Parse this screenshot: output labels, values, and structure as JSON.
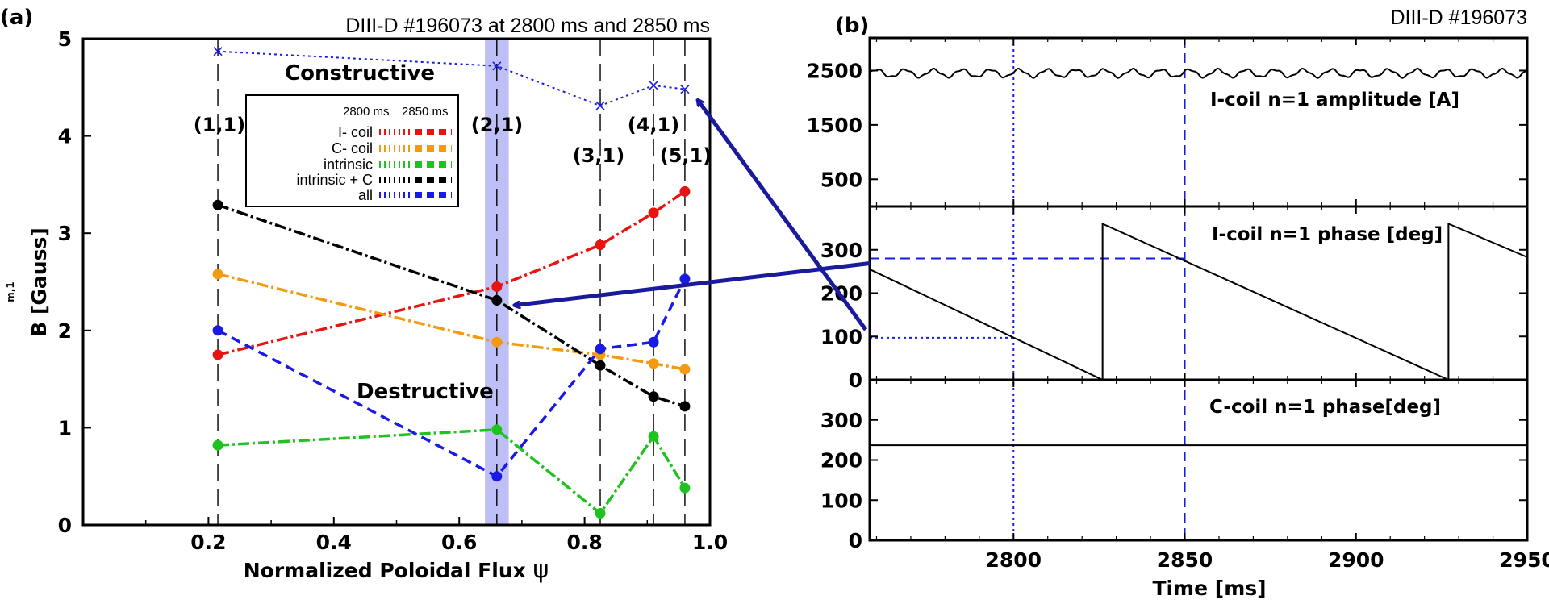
{
  "chart_data": [
    {
      "panel": "(a)",
      "type": "line",
      "title": "DIII-D #196073 at 2800 ms and 2850 ms",
      "xlabel": "Normalized Poloidal Flux",
      "xlabel_symbol": "ψ",
      "ylabel": "B [Gauss]",
      "ylabel_sub": "m,1",
      "xlim": [
        0,
        1.0
      ],
      "ylim": [
        0,
        5
      ],
      "xticks": [
        "0.2",
        "0.4",
        "0.6",
        "0.8",
        "1.0"
      ],
      "yticks": [
        "0",
        "1",
        "2",
        "3",
        "4",
        "5"
      ],
      "x": [
        0.215,
        0.66,
        0.825,
        0.91,
        0.96
      ],
      "surfaces": [
        {
          "label": "(1,1)",
          "x": 0.215
        },
        {
          "label": "(2,1)",
          "x": 0.66
        },
        {
          "label": "(3,1)",
          "x": 0.825
        },
        {
          "label": "(4,1)",
          "x": 0.91
        },
        {
          "label": "(5,1)",
          "x": 0.96
        }
      ],
      "highlight_x": 0.66,
      "legend_header": [
        "2800 ms",
        "2850 ms"
      ],
      "series": [
        {
          "name": "I- coil",
          "color": "#e8140f",
          "values": [
            1.75,
            2.45,
            2.88,
            3.21,
            3.43
          ]
        },
        {
          "name": "C- coil",
          "color": "#f39a10",
          "values": [
            2.58,
            1.88,
            1.75,
            1.66,
            1.6
          ]
        },
        {
          "name": "intrinsic",
          "color": "#1fc31f",
          "values": [
            0.82,
            0.98,
            0.12,
            0.91,
            0.38
          ]
        },
        {
          "name": "intrinsic + C",
          "color": "#000000",
          "values": [
            3.29,
            2.31,
            1.64,
            1.32,
            1.22
          ]
        },
        {
          "name": "all",
          "color": "#1a1ae6",
          "values": [
            2.0,
            0.5,
            1.81,
            1.88,
            2.53
          ]
        },
        {
          "name": "all (constructive)",
          "color": "#1a1ae6",
          "marker": "x",
          "values": [
            4.87,
            4.72,
            4.31,
            4.52,
            4.48
          ]
        }
      ],
      "annotations": [
        "Constructive",
        "Destructive"
      ]
    },
    {
      "panel": "(b)",
      "type": "line",
      "title": "DIII-D #196073",
      "xlabel": "Time [ms]",
      "xlim": [
        2758,
        2950
      ],
      "xticks": [
        "2800",
        "2850",
        "2900",
        "2950"
      ],
      "markers_x": [
        2800,
        2850
      ],
      "subplots": [
        {
          "label": "I-coil n=1 amplitude [A]",
          "ylim": [
            0,
            3100
          ],
          "yticks": [
            "500",
            "1500",
            "2500"
          ],
          "mean": 2450,
          "ripple_amplitude": 70,
          "ripple_period_ms": 8.3
        },
        {
          "label": "I-coil n=1 phase [deg]",
          "ylim": [
            0,
            400
          ],
          "yticks": [
            "0",
            "100",
            "200",
            "300"
          ],
          "sawtooth": [
            [
              2758,
              255
            ],
            [
              2826,
              0
            ],
            [
              2826,
              360
            ],
            [
              2927,
              0
            ],
            [
              2927,
              360
            ],
            [
              2950,
              283
            ]
          ],
          "marked_values": [
            {
              "t": 2800,
              "deg": 97
            },
            {
              "t": 2850,
              "deg": 280
            }
          ]
        },
        {
          "label": "C-coil n=1 phase[deg]",
          "ylim": [
            0,
            400
          ],
          "yticks": [
            "0",
            "100",
            "200",
            "300"
          ],
          "constant": 237
        }
      ]
    }
  ]
}
